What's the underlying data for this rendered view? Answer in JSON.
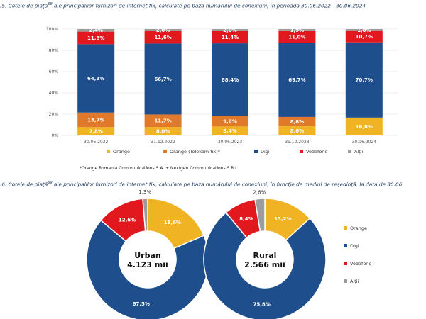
{
  "caption1": {
    "prefix": ".5. Cotele de piață",
    "sup": "68",
    "text": " ale principalilor furnizori de internet fix, calculate pe baza numărului de conexiuni, în perioada 30.06.2022 - 30.06.2024"
  },
  "caption2": {
    "prefix": ".6. Cotele de piață",
    "sup": "69",
    "text": " ale principalilor furnizori de internet fix, calculate pe baza numărului de conexiuni, în funcție de mediul de reședință, la data de 30.06"
  },
  "footnote": "*Orange Romania Communications S.A. + Nextgen Communications S.R.L.",
  "colors": {
    "orange": "#f0b323",
    "orange_telekom": "#e07a2a",
    "digi": "#1f4e8c",
    "vodafone": "#e2181f",
    "altii": "#9c9c9c"
  },
  "chart_data": [
    {
      "type": "bar",
      "stacked": true,
      "categories": [
        "30.06.2022",
        "31.12.2022",
        "30.06.2023",
        "31.12.2023",
        "30.06.2024"
      ],
      "yticks": [
        "0%",
        "20%",
        "40%",
        "60%",
        "80%",
        "100%"
      ],
      "ylim": [
        0,
        100
      ],
      "grid": true,
      "legend_position": "bottom",
      "series": [
        {
          "name": "Orange",
          "key": "orange",
          "values": [
            7.8,
            8.0,
            8.4,
            8.6,
            16.8
          ],
          "labels": [
            "7,8%",
            "8,0%",
            "8,4%",
            "8,6%",
            "16,8%"
          ]
        },
        {
          "name": "Orange (Telekom fix)*",
          "key": "orange_telekom",
          "values": [
            13.7,
            11.7,
            9.8,
            8.8,
            0
          ],
          "labels": [
            "13,7%",
            "11,7%",
            "9,8%",
            "8,8%",
            ""
          ]
        },
        {
          "name": "Digi",
          "key": "digi",
          "values": [
            64.3,
            66.7,
            68.4,
            69.7,
            70.7
          ],
          "labels": [
            "64,3%",
            "66,7%",
            "68,4%",
            "69,7%",
            "70,7%"
          ]
        },
        {
          "name": "Vodafone",
          "key": "vodafone",
          "values": [
            11.8,
            11.6,
            11.4,
            11.0,
            10.7
          ],
          "labels": [
            "11,8%",
            "11,6%",
            "11,4%",
            "11,0%",
            "10,7%"
          ]
        },
        {
          "name": "Alții",
          "key": "altii",
          "values": [
            2.4,
            2.0,
            2.0,
            1.9,
            1.8
          ],
          "labels": [
            "2,4%",
            "2,0%",
            "2,0%",
            "1,9%",
            "1,8%"
          ]
        }
      ]
    },
    {
      "type": "pie",
      "donut": true,
      "center_title": "Urban",
      "center_value": "4.123 mii",
      "slices": [
        {
          "name": "Orange",
          "key": "orange",
          "value": 18.6,
          "label": "18,6%"
        },
        {
          "name": "Digi",
          "key": "digi",
          "value": 67.5,
          "label": "67,5%"
        },
        {
          "name": "Vodafone",
          "key": "vodafone",
          "value": 12.6,
          "label": "12,6%"
        },
        {
          "name": "Alții",
          "key": "altii",
          "value": 1.3,
          "label": "1,3%"
        }
      ]
    },
    {
      "type": "pie",
      "donut": true,
      "center_title": "Rural",
      "center_value": "2.566 mii",
      "legend_position": "right",
      "slices": [
        {
          "name": "Orange",
          "key": "orange",
          "value": 13.2,
          "label": "13,2%"
        },
        {
          "name": "Digi",
          "key": "digi",
          "value": 75.8,
          "label": "75,8%"
        },
        {
          "name": "Vodafone",
          "key": "vodafone",
          "value": 8.4,
          "label": "8,4%"
        },
        {
          "name": "Alții",
          "key": "altii",
          "value": 2.6,
          "label": "2,6%"
        }
      ]
    }
  ]
}
